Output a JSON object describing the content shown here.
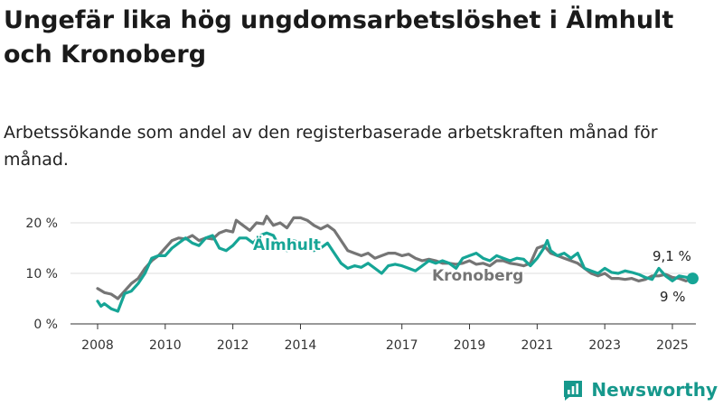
{
  "chart_data": {
    "type": "line",
    "title": "Ungefär lika hög ungdomsarbetslöshet i Älmhult och Kronoberg",
    "subtitle": "Arbetssökande som andel av den registerbaserade arbetskraften månad för månad.",
    "x_ticks": [
      "2008",
      "2010",
      "2012",
      "2014",
      "2017",
      "2019",
      "2021",
      "2023",
      "2025"
    ],
    "y_ticks": [
      "0 %",
      "10 %",
      "20 %"
    ],
    "ylim": [
      0,
      20
    ],
    "grid": true,
    "series": [
      {
        "name": "Kronoberg",
        "color": "#757575",
        "end_label": "9,1 %",
        "values": [
          [
            2008.0,
            7
          ],
          [
            2008.2,
            6.2
          ],
          [
            2008.4,
            5.9
          ],
          [
            2008.6,
            5
          ],
          [
            2008.8,
            6.5
          ],
          [
            2009.0,
            8
          ],
          [
            2009.2,
            9
          ],
          [
            2009.4,
            11
          ],
          [
            2009.6,
            12.5
          ],
          [
            2009.8,
            13.5
          ],
          [
            2010.0,
            15
          ],
          [
            2010.2,
            16.5
          ],
          [
            2010.4,
            17
          ],
          [
            2010.6,
            16.8
          ],
          [
            2010.8,
            17.5
          ],
          [
            2011.0,
            16.5
          ],
          [
            2011.2,
            17
          ],
          [
            2011.4,
            16.8
          ],
          [
            2011.6,
            18
          ],
          [
            2011.8,
            18.5
          ],
          [
            2012.0,
            18.2
          ],
          [
            2012.1,
            20.5
          ],
          [
            2012.3,
            19.5
          ],
          [
            2012.5,
            18.5
          ],
          [
            2012.7,
            20
          ],
          [
            2012.9,
            19.8
          ],
          [
            2013.0,
            21.3
          ],
          [
            2013.2,
            19.5
          ],
          [
            2013.4,
            20
          ],
          [
            2013.6,
            19
          ],
          [
            2013.8,
            21
          ],
          [
            2014.0,
            21
          ],
          [
            2014.2,
            20.5
          ],
          [
            2014.4,
            19.5
          ],
          [
            2014.6,
            18.8
          ],
          [
            2014.8,
            19.5
          ],
          [
            2015.0,
            18.5
          ],
          [
            2015.2,
            16.5
          ],
          [
            2015.4,
            14.5
          ],
          [
            2015.6,
            14
          ],
          [
            2015.8,
            13.5
          ],
          [
            2016.0,
            14
          ],
          [
            2016.2,
            13
          ],
          [
            2016.4,
            13.5
          ],
          [
            2016.6,
            14
          ],
          [
            2016.8,
            14
          ],
          [
            2017.0,
            13.5
          ],
          [
            2017.2,
            13.8
          ],
          [
            2017.4,
            13
          ],
          [
            2017.6,
            12.5
          ],
          [
            2017.8,
            12.8
          ],
          [
            2018.0,
            12.5
          ],
          [
            2018.2,
            12
          ],
          [
            2018.4,
            12
          ],
          [
            2018.6,
            11.8
          ],
          [
            2018.8,
            12
          ],
          [
            2019.0,
            12.5
          ],
          [
            2019.2,
            11.8
          ],
          [
            2019.4,
            12
          ],
          [
            2019.6,
            11.5
          ],
          [
            2019.8,
            12.5
          ],
          [
            2020.0,
            12.5
          ],
          [
            2020.2,
            12
          ],
          [
            2020.4,
            11.8
          ],
          [
            2020.6,
            11.5
          ],
          [
            2020.8,
            12
          ],
          [
            2021.0,
            15
          ],
          [
            2021.2,
            15.5
          ],
          [
            2021.4,
            14
          ],
          [
            2021.6,
            13.5
          ],
          [
            2021.8,
            13
          ],
          [
            2022.0,
            12.5
          ],
          [
            2022.2,
            12
          ],
          [
            2022.4,
            11
          ],
          [
            2022.6,
            10
          ],
          [
            2022.8,
            9.5
          ],
          [
            2023.0,
            10
          ],
          [
            2023.2,
            9
          ],
          [
            2023.4,
            9
          ],
          [
            2023.6,
            8.8
          ],
          [
            2023.8,
            9
          ],
          [
            2024.0,
            8.5
          ],
          [
            2024.2,
            8.8
          ],
          [
            2024.4,
            9.5
          ],
          [
            2024.6,
            9.5
          ],
          [
            2024.8,
            9.8
          ],
          [
            2025.0,
            9.2
          ],
          [
            2025.2,
            9
          ],
          [
            2025.4,
            8.5
          ],
          [
            2025.6,
            9.1
          ]
        ]
      },
      {
        "name": "Älmhult",
        "color": "#16a596",
        "end_label": "9 %",
        "values": [
          [
            2008.0,
            4.5
          ],
          [
            2008.1,
            3.5
          ],
          [
            2008.2,
            4
          ],
          [
            2008.4,
            3
          ],
          [
            2008.6,
            2.5
          ],
          [
            2008.8,
            6
          ],
          [
            2009.0,
            6.5
          ],
          [
            2009.2,
            8
          ],
          [
            2009.4,
            10
          ],
          [
            2009.6,
            13
          ],
          [
            2009.8,
            13.5
          ],
          [
            2010.0,
            13.5
          ],
          [
            2010.2,
            15
          ],
          [
            2010.4,
            16
          ],
          [
            2010.6,
            17
          ],
          [
            2010.8,
            16
          ],
          [
            2011.0,
            15.5
          ],
          [
            2011.2,
            17
          ],
          [
            2011.4,
            17.5
          ],
          [
            2011.6,
            15
          ],
          [
            2011.8,
            14.5
          ],
          [
            2012.0,
            15.5
          ],
          [
            2012.2,
            17
          ],
          [
            2012.4,
            17
          ],
          [
            2012.6,
            16
          ],
          [
            2012.8,
            17.5
          ],
          [
            2013.0,
            18
          ],
          [
            2013.2,
            17.5
          ],
          [
            2013.4,
            15
          ],
          [
            2013.6,
            14.5
          ],
          [
            2013.8,
            16.5
          ],
          [
            2014.0,
            16
          ],
          [
            2014.2,
            15.5
          ],
          [
            2014.4,
            14.5
          ],
          [
            2014.6,
            15
          ],
          [
            2014.8,
            16
          ],
          [
            2015.0,
            14
          ],
          [
            2015.2,
            12
          ],
          [
            2015.4,
            11
          ],
          [
            2015.6,
            11.5
          ],
          [
            2015.8,
            11.2
          ],
          [
            2016.0,
            12
          ],
          [
            2016.2,
            11
          ],
          [
            2016.4,
            10
          ],
          [
            2016.6,
            11.5
          ],
          [
            2016.8,
            11.8
          ],
          [
            2017.0,
            11.5
          ],
          [
            2017.2,
            11
          ],
          [
            2017.4,
            10.5
          ],
          [
            2017.6,
            11.5
          ],
          [
            2017.8,
            12.5
          ],
          [
            2018.0,
            12
          ],
          [
            2018.2,
            12.5
          ],
          [
            2018.4,
            12
          ],
          [
            2018.6,
            11
          ],
          [
            2018.8,
            13
          ],
          [
            2019.0,
            13.5
          ],
          [
            2019.2,
            14
          ],
          [
            2019.4,
            13
          ],
          [
            2019.6,
            12.5
          ],
          [
            2019.8,
            13.5
          ],
          [
            2020.0,
            13
          ],
          [
            2020.2,
            12.5
          ],
          [
            2020.4,
            13
          ],
          [
            2020.6,
            12.8
          ],
          [
            2020.8,
            11.5
          ],
          [
            2021.0,
            13
          ],
          [
            2021.2,
            15
          ],
          [
            2021.3,
            16.5
          ],
          [
            2021.4,
            14.5
          ],
          [
            2021.6,
            13.5
          ],
          [
            2021.8,
            14
          ],
          [
            2022.0,
            13
          ],
          [
            2022.2,
            14
          ],
          [
            2022.4,
            11
          ],
          [
            2022.6,
            10.5
          ],
          [
            2022.8,
            10
          ],
          [
            2023.0,
            11
          ],
          [
            2023.2,
            10.2
          ],
          [
            2023.4,
            10
          ],
          [
            2023.6,
            10.5
          ],
          [
            2023.8,
            10.2
          ],
          [
            2024.0,
            9.8
          ],
          [
            2024.2,
            9.2
          ],
          [
            2024.4,
            8.8
          ],
          [
            2024.6,
            11
          ],
          [
            2024.8,
            9.5
          ],
          [
            2025.0,
            8.5
          ],
          [
            2025.2,
            9.5
          ],
          [
            2025.6,
            9
          ]
        ]
      }
    ]
  },
  "brand": {
    "name": "Newsworthy",
    "logo_icon": "newsworthy-chart-logo",
    "color": "#16988c"
  }
}
